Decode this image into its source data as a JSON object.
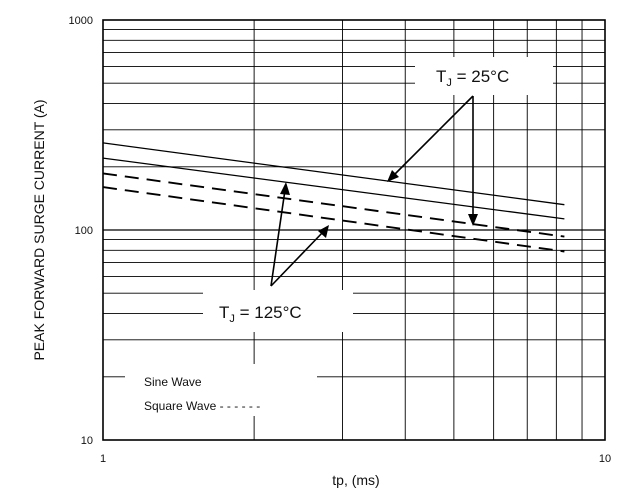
{
  "chart_data": {
    "type": "line",
    "title": "",
    "xlabel": "tp, (ms)",
    "ylabel": "PEAK FORWARD SURGE CURRENT (A)",
    "xscale": "log",
    "yscale": "log",
    "xlim": [
      1,
      10
    ],
    "ylim": [
      10,
      1000
    ],
    "grid": true,
    "x_ticks": [
      "1",
      "10"
    ],
    "y_ticks": [
      "10",
      "100",
      "1000"
    ],
    "series": [
      {
        "name": "Sine Wave",
        "curve": "TJ = 25°C",
        "style": "solid",
        "x": [
          1,
          8.3
        ],
        "y": [
          260,
          132
        ]
      },
      {
        "name": "Sine Wave",
        "curve": "TJ = 125°C",
        "style": "solid",
        "x": [
          1,
          8.3
        ],
        "y": [
          220,
          113
        ]
      },
      {
        "name": "Square Wave",
        "curve": "TJ = 25°C",
        "style": "dashed",
        "x": [
          1,
          8.3
        ],
        "y": [
          186,
          93
        ]
      },
      {
        "name": "Square Wave",
        "curve": "TJ = 125°C",
        "style": "dashed",
        "x": [
          1,
          8.3
        ],
        "y": [
          160,
          79
        ]
      }
    ],
    "annotations": [
      {
        "sub": "J",
        "text": " = 25°C"
      },
      {
        "sub": "J",
        "text": " = 125°C"
      }
    ],
    "legend": {
      "position": "bottom-left",
      "entries": [
        "Sine Wave",
        "Square Wave - - - - - -"
      ]
    }
  }
}
